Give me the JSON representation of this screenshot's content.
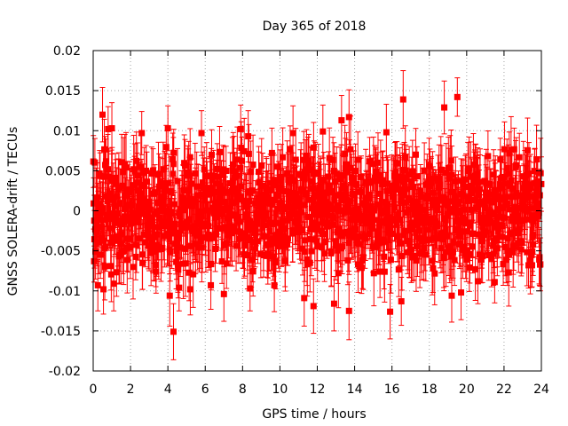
{
  "chart_data": {
    "type": "scatter",
    "title": "Day 365 of 2018",
    "xlabel": "GPS time / hours",
    "ylabel": "GNSS SOLERA-drift / TECUs",
    "xlim": [
      0,
      24
    ],
    "ylim": [
      -0.02,
      0.02
    ],
    "x_ticks": [
      0,
      2,
      4,
      6,
      8,
      10,
      12,
      14,
      16,
      18,
      20,
      22,
      24
    ],
    "x_tick_labels": [
      "0",
      "2",
      "4",
      "6",
      "8",
      "10",
      "12",
      "14",
      "16",
      "18",
      "20",
      "22",
      "24"
    ],
    "y_ticks": [
      -0.02,
      -0.015,
      -0.01,
      -0.005,
      0,
      0.005,
      0.01,
      0.015,
      0.02
    ],
    "y_tick_labels": [
      "-0.02",
      "-0.015",
      "-0.01",
      "-0.005",
      "0",
      "0.005",
      "0.01",
      "0.015",
      "0.02"
    ],
    "grid": true,
    "series": [
      {
        "name": "GNSS SOLERA-drift",
        "color": "#ff0000",
        "marker": "square",
        "error_bars": true,
        "dense_band": {
          "x_range": [
            0,
            24
          ],
          "typical_min": -0.008,
          "typical_max": 0.008,
          "typical_error": 0.0035,
          "n_points": 1200
        },
        "x": [
          0.5,
          0.8,
          1.0,
          2.6,
          4.0,
          5.8,
          7.9,
          8.3,
          10.7,
          12.3,
          13.3,
          13.7,
          15.7,
          16.6,
          18.8,
          19.5,
          0.05,
          0.25,
          0.55,
          0.95,
          1.1,
          4.1,
          4.3,
          4.6,
          5.2,
          6.3,
          7.0,
          8.4,
          9.7,
          11.3,
          11.8,
          12.9,
          13.7,
          15.9,
          16.5,
          18.2,
          19.2,
          19.7,
          20.6,
          21.5,
          23.5,
          23.9
        ],
        "y": [
          0.012,
          0.0102,
          0.0103,
          0.0097,
          0.0103,
          0.0097,
          0.0102,
          0.0093,
          0.0097,
          0.0099,
          0.0113,
          0.0117,
          0.0098,
          0.0139,
          0.0129,
          0.0142,
          -0.0063,
          -0.0093,
          -0.0098,
          -0.0069,
          -0.0091,
          -0.0106,
          -0.0151,
          -0.0096,
          -0.0098,
          -0.0093,
          -0.0104,
          -0.0097,
          -0.0093,
          -0.0109,
          -0.0119,
          -0.0116,
          -0.0125,
          -0.0126,
          -0.0113,
          -0.0072,
          -0.0106,
          -0.0102,
          -0.0088,
          -0.0089,
          -0.0068,
          -0.0058
        ],
        "y_error": [
          0.0034,
          0.0028,
          0.0032,
          0.0027,
          0.0028,
          0.0028,
          0.003,
          0.0032,
          0.0034,
          0.0033,
          0.0031,
          0.0034,
          0.0035,
          0.0036,
          0.0033,
          0.0024,
          0.0026,
          0.0032,
          0.0031,
          0.003,
          0.0034,
          0.0038,
          0.0035,
          0.0029,
          0.0032,
          0.003,
          0.0034,
          0.0028,
          0.0033,
          0.0035,
          0.0034,
          0.0034,
          0.0036,
          0.0034,
          0.003,
          0.003,
          0.0033,
          0.0034,
          0.0028,
          0.0026,
          0.0027,
          0.0035
        ]
      }
    ]
  }
}
